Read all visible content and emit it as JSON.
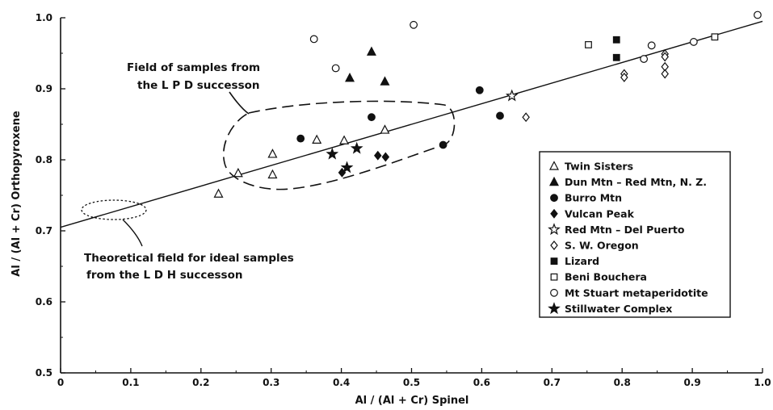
{
  "chart_data": {
    "type": "scatter",
    "xlabel": "Al / (Al + Cr) Spinel",
    "ylabel": "Al / (Al + Cr) Orthopyroxene",
    "xlim": [
      0,
      1.0
    ],
    "ylim": [
      0.5,
      1.0
    ],
    "x_ticks": [
      "0",
      "0.1",
      "0.2",
      "0.3",
      "0.4",
      "0.5",
      "0.6",
      "0.7",
      "0.8",
      "0.9",
      "1.0"
    ],
    "y_ticks": [
      "0.5",
      "0.6",
      "0.7",
      "0.8",
      "0.9",
      "1.0"
    ],
    "grid": false,
    "legend_position": "right",
    "trend_line": {
      "x": [
        0,
        1.0
      ],
      "y": [
        0.705,
        0.995
      ]
    },
    "annotations": [
      {
        "lines": [
          "Field of samples from",
          "the L P D successon"
        ]
      },
      {
        "lines": [
          "Theoretical field for ideal samples",
          "from the L D H successon"
        ]
      }
    ],
    "series": [
      {
        "name": "Twin Sisters",
        "marker": "triangle-open",
        "points": [
          [
            0.225,
            0.752
          ],
          [
            0.253,
            0.781
          ],
          [
            0.302,
            0.808
          ],
          [
            0.302,
            0.779
          ],
          [
            0.365,
            0.828
          ],
          [
            0.404,
            0.827
          ],
          [
            0.462,
            0.842
          ]
        ]
      },
      {
        "name": "Dun Mtn – Red Mtn, N. Z.",
        "marker": "triangle-filled",
        "points": [
          [
            0.443,
            0.952
          ],
          [
            0.412,
            0.915
          ],
          [
            0.462,
            0.91
          ]
        ]
      },
      {
        "name": "Burro Mtn",
        "marker": "circle-filled",
        "points": [
          [
            0.342,
            0.83
          ],
          [
            0.443,
            0.86
          ],
          [
            0.545,
            0.821
          ],
          [
            0.597,
            0.898
          ],
          [
            0.626,
            0.862
          ]
        ]
      },
      {
        "name": "Vulcan Peak",
        "marker": "diamond-filled",
        "points": [
          [
            0.401,
            0.782
          ],
          [
            0.452,
            0.806
          ],
          [
            0.463,
            0.804
          ]
        ]
      },
      {
        "name": "Red Mtn – Del Puerto",
        "marker": "star-open",
        "points": [
          [
            0.643,
            0.89
          ]
        ]
      },
      {
        "name": "S. W. Oregon",
        "marker": "diamond-open",
        "points": [
          [
            0.663,
            0.86
          ],
          [
            0.803,
            0.921
          ],
          [
            0.803,
            0.916
          ],
          [
            0.861,
            0.949
          ],
          [
            0.861,
            0.945
          ],
          [
            0.861,
            0.931
          ],
          [
            0.861,
            0.921
          ]
        ]
      },
      {
        "name": "Lizard",
        "marker": "square-filled",
        "points": [
          [
            0.792,
            0.969
          ],
          [
            0.792,
            0.944
          ]
        ]
      },
      {
        "name": "Beni Bouchera",
        "marker": "square-open",
        "points": [
          [
            0.752,
            0.962
          ],
          [
            0.932,
            0.973
          ]
        ]
      },
      {
        "name": "Mt Stuart metaperidotite",
        "marker": "circle-open",
        "points": [
          [
            0.361,
            0.97
          ],
          [
            0.392,
            0.929
          ],
          [
            0.503,
            0.99
          ],
          [
            0.831,
            0.942
          ],
          [
            0.842,
            0.961
          ],
          [
            0.902,
            0.966
          ],
          [
            0.993,
            1.004
          ]
        ]
      },
      {
        "name": "Stillwater Complex",
        "marker": "star-filled",
        "points": [
          [
            0.387,
            0.808
          ],
          [
            0.422,
            0.816
          ],
          [
            0.408,
            0.789
          ]
        ]
      }
    ]
  }
}
